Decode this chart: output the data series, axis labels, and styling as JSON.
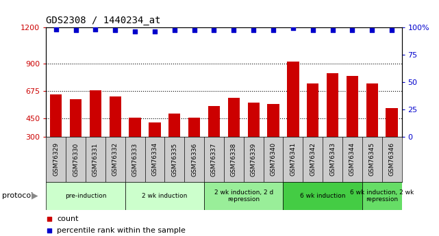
{
  "title": "GDS2308 / 1440234_at",
  "samples": [
    "GSM76329",
    "GSM76330",
    "GSM76331",
    "GSM76332",
    "GSM76333",
    "GSM76334",
    "GSM76335",
    "GSM76336",
    "GSM76337",
    "GSM76338",
    "GSM76339",
    "GSM76340",
    "GSM76341",
    "GSM76342",
    "GSM76343",
    "GSM76344",
    "GSM76345",
    "GSM76346"
  ],
  "counts": [
    648,
    608,
    680,
    630,
    460,
    420,
    490,
    455,
    555,
    620,
    580,
    570,
    920,
    740,
    820,
    800,
    740,
    535
  ],
  "percentile_ranks": [
    98,
    97,
    98,
    97,
    96,
    96,
    97,
    97,
    97,
    97,
    97,
    97,
    99,
    97,
    97,
    97,
    97,
    97
  ],
  "ylim_left": [
    300,
    1200
  ],
  "ylim_right": [
    0,
    100
  ],
  "yticks_left": [
    300,
    450,
    675,
    900,
    1200
  ],
  "yticks_right": [
    0,
    25,
    50,
    75,
    100
  ],
  "bar_color": "#cc0000",
  "dot_color": "#0000cc",
  "protocol_groups": [
    {
      "label": "pre-induction",
      "start": 0,
      "end": 3,
      "color": "#ccffcc"
    },
    {
      "label": "2 wk induction",
      "start": 4,
      "end": 7,
      "color": "#ccffcc"
    },
    {
      "label": "2 wk induction, 2 d\nrepression",
      "start": 8,
      "end": 11,
      "color": "#99ee99"
    },
    {
      "label": "6 wk induction",
      "start": 12,
      "end": 15,
      "color": "#44cc44"
    },
    {
      "label": "6 wk induction, 2 wk\nrepression",
      "start": 16,
      "end": 17,
      "color": "#66dd66"
    }
  ],
  "legend_count_label": "count",
  "legend_percentile_label": "percentile rank within the sample",
  "protocol_label": "protocol",
  "background_color": "#ffffff",
  "bar_width": 0.6,
  "xtick_bg_color": "#cccccc",
  "grid_color": "#000000",
  "tick_label_color_left": "#cc0000",
  "tick_label_color_right": "#0000cc"
}
